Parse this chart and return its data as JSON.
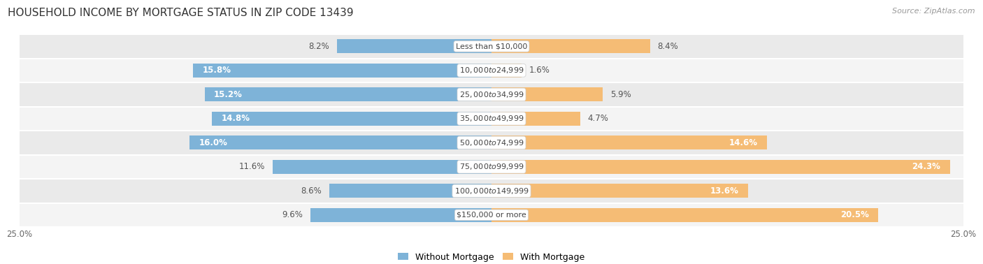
{
  "title": "HOUSEHOLD INCOME BY MORTGAGE STATUS IN ZIP CODE 13439",
  "source": "Source: ZipAtlas.com",
  "categories": [
    "Less than $10,000",
    "$10,000 to $24,999",
    "$25,000 to $34,999",
    "$35,000 to $49,999",
    "$50,000 to $74,999",
    "$75,000 to $99,999",
    "$100,000 to $149,999",
    "$150,000 or more"
  ],
  "without_mortgage": [
    8.2,
    15.8,
    15.2,
    14.8,
    16.0,
    11.6,
    8.6,
    9.6
  ],
  "with_mortgage": [
    8.4,
    1.6,
    5.9,
    4.7,
    14.6,
    24.3,
    13.6,
    20.5
  ],
  "color_without": "#7EB3D8",
  "color_with": "#F5BC75",
  "axis_limit": 25.0,
  "bar_height": 0.58,
  "title_fontsize": 11,
  "label_fontsize": 8.5,
  "category_fontsize": 8,
  "legend_fontsize": 9,
  "source_fontsize": 8,
  "inside_label_threshold": 13.0
}
